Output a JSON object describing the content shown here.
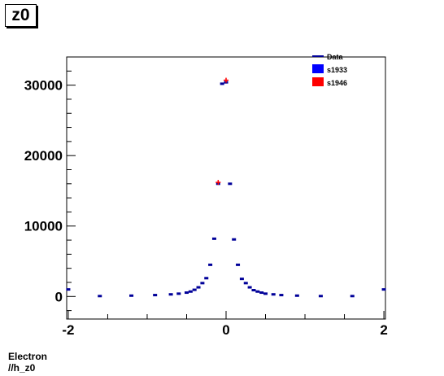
{
  "title": "z0",
  "footer": {
    "line1": "Electron",
    "line2": "//h_z0"
  },
  "chart_data": {
    "type": "scatter",
    "title": "z0",
    "xlabel": "",
    "ylabel": "",
    "xlim": [
      -2.02,
      2.02
    ],
    "ylim": [
      -3200,
      34000
    ],
    "xticks": [
      -2,
      0,
      2
    ],
    "yticks": [
      0,
      10000,
      20000,
      30000
    ],
    "ytick_labels": [
      "0",
      "10000",
      "20000",
      "30000"
    ],
    "xtick_labels": [
      "-2",
      "0",
      "2"
    ],
    "grid": false,
    "legend_position": "top-right",
    "legend": [
      {
        "name": "Data",
        "color": "#000099",
        "style": "line"
      },
      {
        "name": "s1933",
        "color": "#0000ff",
        "style": "box"
      },
      {
        "name": "s1946",
        "color": "#ff0000",
        "style": "box"
      }
    ],
    "series": [
      {
        "name": "Data",
        "color": "#000099",
        "x": [
          -2.0,
          -1.6,
          -1.2,
          -0.9,
          -0.7,
          -0.6,
          -0.5,
          -0.45,
          -0.4,
          -0.35,
          -0.3,
          -0.25,
          -0.2,
          -0.15,
          -0.1,
          -0.05,
          0.0,
          0.05,
          0.1,
          0.15,
          0.2,
          0.25,
          0.3,
          0.35,
          0.4,
          0.45,
          0.5,
          0.6,
          0.7,
          0.9,
          1.2,
          1.6,
          2.0
        ],
        "y": [
          1000,
          60,
          120,
          200,
          300,
          400,
          550,
          700,
          950,
          1300,
          1900,
          2600,
          4500,
          8200,
          16000,
          30200,
          30400,
          16000,
          8100,
          4500,
          2500,
          1900,
          1300,
          900,
          700,
          550,
          400,
          300,
          200,
          120,
          60,
          60,
          1000
        ]
      },
      {
        "name": "s1946",
        "color": "#ff0000",
        "x": [
          -0.1,
          0.0
        ],
        "y": [
          16200,
          30700
        ]
      }
    ]
  }
}
